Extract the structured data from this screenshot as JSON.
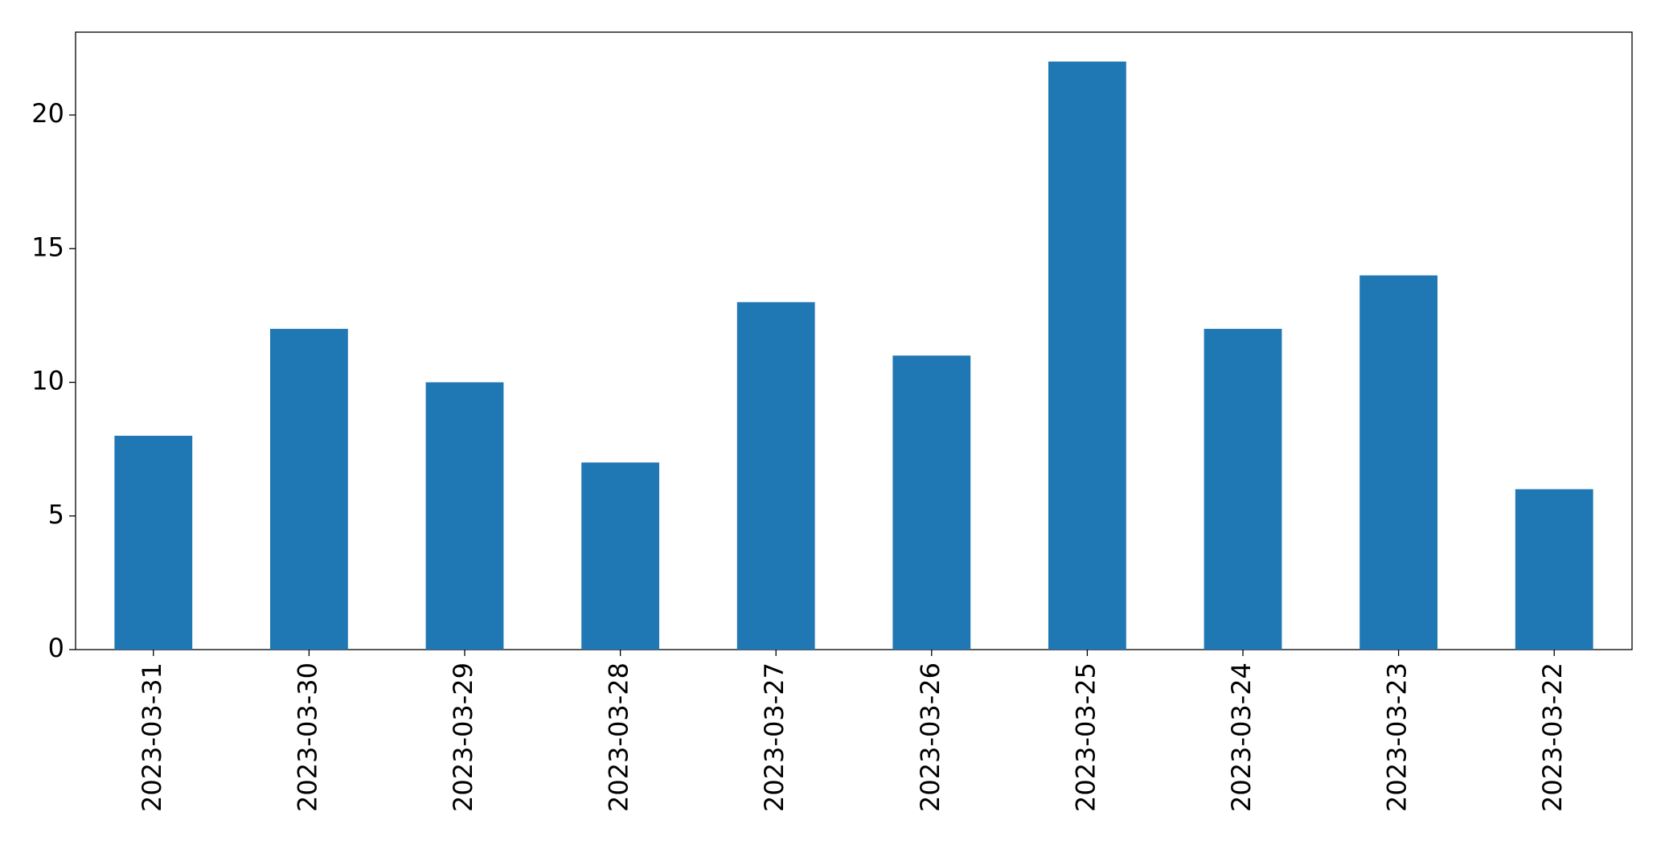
{
  "chart_data": {
    "type": "bar",
    "categories": [
      "2023-03-31",
      "2023-03-30",
      "2023-03-29",
      "2023-03-28",
      "2023-03-27",
      "2023-03-26",
      "2023-03-25",
      "2023-03-24",
      "2023-03-23",
      "2023-03-22"
    ],
    "values": [
      8,
      12,
      10,
      7,
      13,
      11,
      22,
      12,
      14,
      6
    ],
    "color": "#1f77b4",
    "ylim": [
      0,
      23.1
    ],
    "yticks": [
      0,
      5,
      10,
      15,
      20
    ],
    "grid": false
  }
}
